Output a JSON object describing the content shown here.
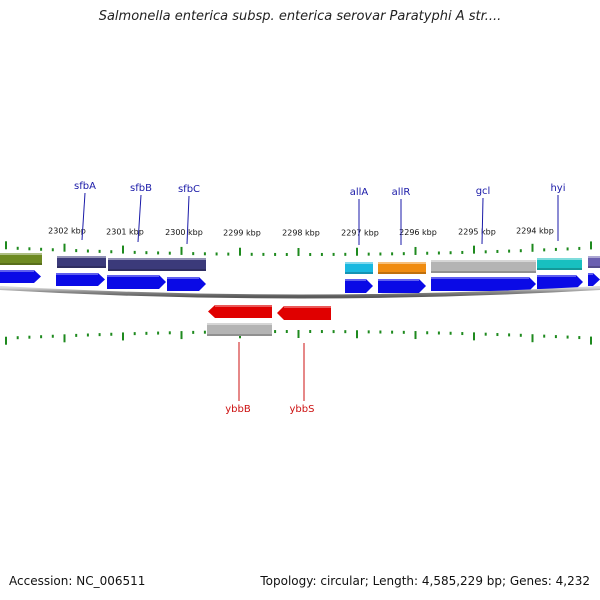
{
  "title": "Salmonella enterica subsp. enterica serovar Paratyphi A str....",
  "accession": "Accession: NC_006511",
  "summary": "Topology: circular; Length: 4,585,229 bp; Genes: 4,232",
  "colors": {
    "backbone": "#8c8c8c",
    "tick": "#1e8a1e",
    "label_forward": "#1a1aa8",
    "label_reverse": "#cc1111",
    "cds": "#0a0ae6",
    "reverse_feature": "#e00000",
    "navy_feature": "#3b3a7a",
    "olive_feature": "#6e8a22",
    "cyan_feature": "#19b8e0",
    "orange_feature": "#f08c10",
    "gray_feature": "#b4b4b4",
    "teal_feature": "#18c0c0",
    "purple_feature": "#6a5fb0"
  },
  "scale_labels": [
    "2302 kbp",
    "2301 kbp",
    "2300 kbp",
    "2299 kbp",
    "2298 kbp",
    "2297 kbp",
    "2296 kbp",
    "2295 kbp",
    "2294 kbp"
  ],
  "forward_genes": [
    "sfbA",
    "sfbB",
    "sfbC",
    "allA",
    "allR",
    "gcl",
    "hyi"
  ],
  "reverse_genes": [
    "ybbB",
    "ybbS"
  ]
}
